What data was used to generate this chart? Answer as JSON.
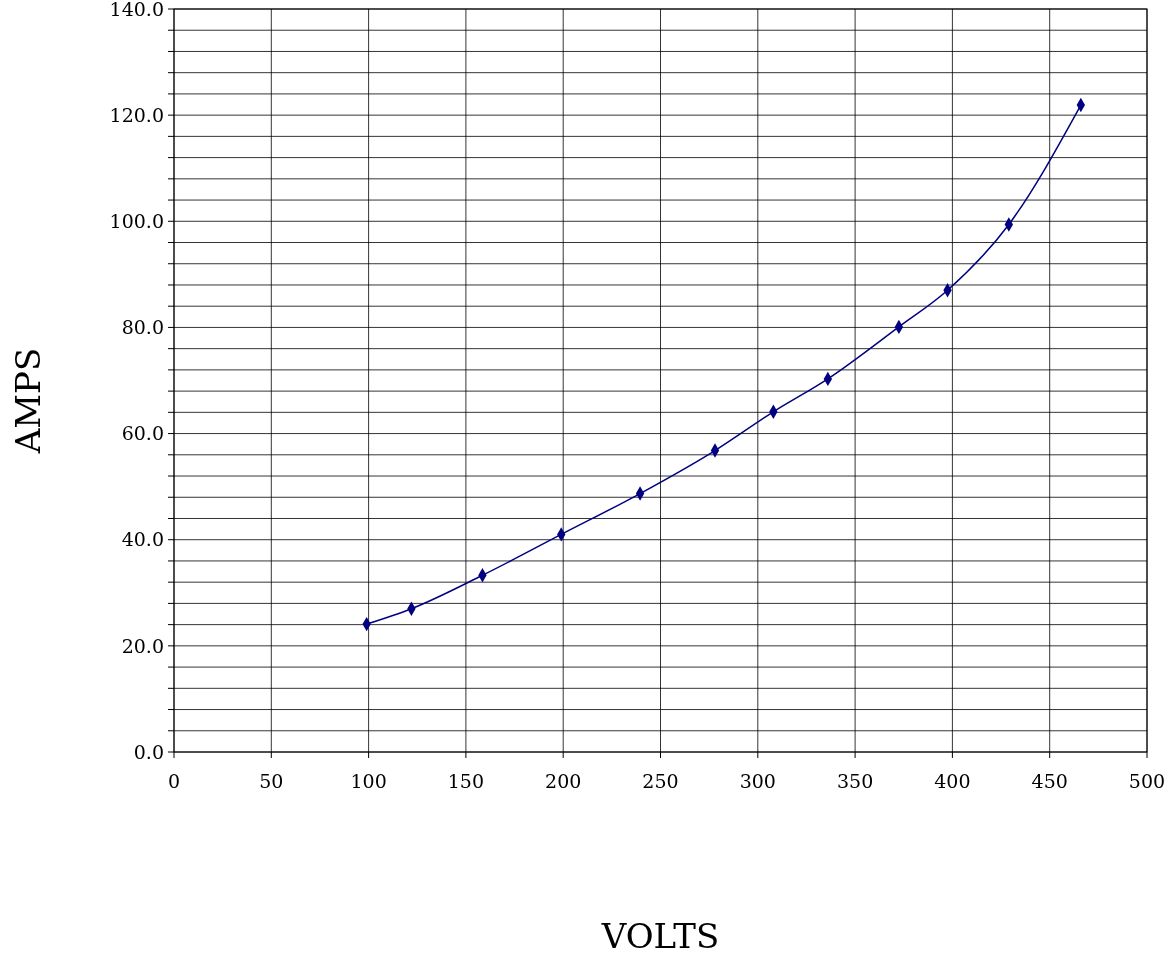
{
  "chart_data": {
    "type": "line",
    "xlabel": "VOLTS",
    "ylabel": "AMPS",
    "x": [
      99,
      122,
      158.5,
      199,
      239.5,
      278,
      308,
      336,
      372.5,
      397.5,
      429,
      466
    ],
    "series": [
      {
        "color": "#000080",
        "values": [
          24.1,
          27.0,
          33.3,
          41.0,
          48.7,
          56.8,
          64.1,
          70.3,
          80.1,
          87.0,
          99.4,
          121.9
        ]
      }
    ],
    "xlim": [
      0,
      500
    ],
    "xticks": [
      0,
      50,
      100,
      150,
      200,
      250,
      300,
      350,
      400,
      450,
      500
    ],
    "ylim": [
      0,
      140
    ],
    "yticks": [
      {
        "value": 0,
        "label": "0.0"
      },
      {
        "value": 4,
        "label": null
      },
      {
        "value": 8,
        "label": null
      },
      {
        "value": 12,
        "label": null
      },
      {
        "value": 16,
        "label": null
      },
      {
        "value": 20,
        "label": "20.0"
      },
      {
        "value": 24,
        "label": null
      },
      {
        "value": 28,
        "label": null
      },
      {
        "value": 32,
        "label": null
      },
      {
        "value": 36,
        "label": null
      },
      {
        "value": 40,
        "label": "40.0"
      },
      {
        "value": 44,
        "label": null
      },
      {
        "value": 48,
        "label": null
      },
      {
        "value": 52,
        "label": null
      },
      {
        "value": 56,
        "label": null
      },
      {
        "value": 60,
        "label": "60.0"
      },
      {
        "value": 64,
        "label": null
      },
      {
        "value": 68,
        "label": null
      },
      {
        "value": 72,
        "label": null
      },
      {
        "value": 76,
        "label": null
      },
      {
        "value": 80,
        "label": "80.0"
      },
      {
        "value": 84,
        "label": null
      },
      {
        "value": 88,
        "label": null
      },
      {
        "value": 92,
        "label": null
      },
      {
        "value": 96,
        "label": null
      },
      {
        "value": 100,
        "label": "100.0"
      },
      {
        "value": 104,
        "label": null
      },
      {
        "value": 108,
        "label": null
      },
      {
        "value": 112,
        "label": null
      },
      {
        "value": 116,
        "label": null
      },
      {
        "value": 120,
        "label": "120.0"
      },
      {
        "value": 124,
        "label": null
      },
      {
        "value": 128,
        "label": null
      },
      {
        "value": 132,
        "label": null
      },
      {
        "value": 136,
        "label": null
      },
      {
        "value": 140,
        "label": "140.0"
      }
    ],
    "grid": true,
    "marker": "diamond",
    "line_style": "solid"
  }
}
